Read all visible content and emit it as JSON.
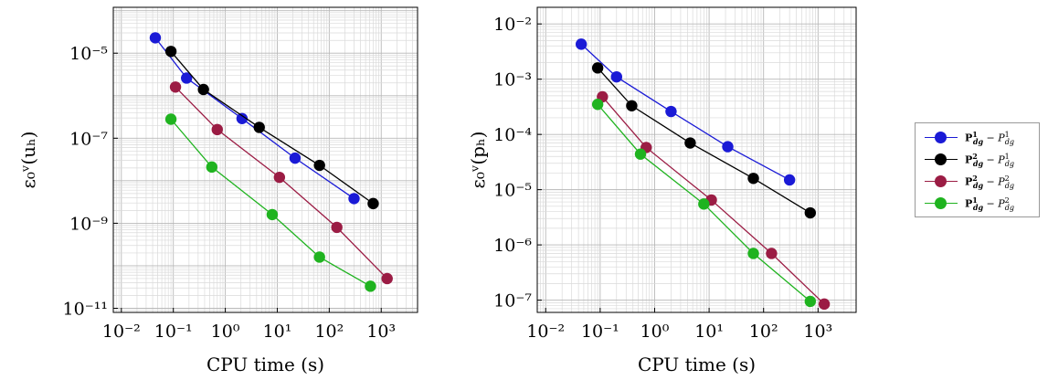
{
  "chart_data": [
    {
      "type": "line",
      "xscale": "log",
      "yscale": "log",
      "xlabel": "CPU time (s)",
      "ylabel": "ε₀ᵛ(uₕ)",
      "xlim": [
        0.007,
        5000
      ],
      "ylim": [
        8e-12,
        0.00012
      ],
      "xticks": [
        {
          "value": 0.01,
          "label": "10⁻²"
        },
        {
          "value": 0.1,
          "label": "10⁻¹"
        },
        {
          "value": 1,
          "label": "10⁰"
        },
        {
          "value": 10,
          "label": "10¹"
        },
        {
          "value": 100,
          "label": "10²"
        },
        {
          "value": 1000,
          "label": "10³"
        }
      ],
      "yticks": [
        {
          "value": 1e-11,
          "label": "10⁻¹¹"
        },
        {
          "value": 1e-09,
          "label": "10⁻⁹"
        },
        {
          "value": 1e-07,
          "label": "10⁻⁷"
        },
        {
          "value": 1e-05,
          "label": "10⁻⁵"
        }
      ],
      "grid": true,
      "series": [
        {
          "name": "P¹dg − P¹dg",
          "color": "#1a1ad6",
          "x": [
            0.045,
            0.18,
            2.1,
            22,
            300
          ],
          "y": [
            2.3e-05,
            2.6e-06,
            2.9e-07,
            3.4e-08,
            3.8e-09
          ]
        },
        {
          "name": "P²dg − P¹dg",
          "color": "#000000",
          "x": [
            0.09,
            0.38,
            4.5,
            65,
            700
          ],
          "y": [
            1.1e-05,
            1.4e-06,
            1.8e-07,
            2.3e-08,
            2.9e-09
          ]
        },
        {
          "name": "P²dg − P²dg",
          "color": "#9b1c44",
          "x": [
            0.11,
            0.7,
            11,
            140,
            1300
          ],
          "y": [
            1.6e-06,
            1.6e-07,
            1.2e-08,
            8e-10,
            5e-11
          ]
        },
        {
          "name": "P¹dg − P²dg",
          "color": "#1fb31f",
          "x": [
            0.09,
            0.55,
            8,
            65,
            620
          ],
          "y": [
            2.8e-07,
            2.1e-08,
            1.6e-09,
            1.6e-10,
            3.3e-11
          ]
        }
      ]
    },
    {
      "type": "line",
      "xscale": "log",
      "yscale": "log",
      "xlabel": "CPU time (s)",
      "ylabel": "ε₀ᵛ(pₕ)",
      "xlim": [
        0.007,
        5000
      ],
      "ylim": [
        6e-08,
        0.02
      ],
      "xticks": [
        {
          "value": 0.01,
          "label": "10⁻²"
        },
        {
          "value": 0.1,
          "label": "10⁻¹"
        },
        {
          "value": 1,
          "label": "10⁰"
        },
        {
          "value": 10,
          "label": "10¹"
        },
        {
          "value": 100,
          "label": "10²"
        },
        {
          "value": 1000,
          "label": "10³"
        }
      ],
      "yticks": [
        {
          "value": 1e-07,
          "label": "10⁻⁷"
        },
        {
          "value": 1e-06,
          "label": "10⁻⁶"
        },
        {
          "value": 1e-05,
          "label": "10⁻⁵"
        },
        {
          "value": 0.0001,
          "label": "10⁻⁴"
        },
        {
          "value": 0.001,
          "label": "10⁻³"
        },
        {
          "value": 0.01,
          "label": "10⁻²"
        }
      ],
      "grid": true,
      "series": [
        {
          "name": "P¹dg − P¹dg",
          "color": "#1a1ad6",
          "x": [
            0.045,
            0.2,
            2,
            22,
            300
          ],
          "y": [
            0.0043,
            0.0011,
            0.00026,
            6e-05,
            1.5e-05
          ]
        },
        {
          "name": "P²dg − P¹dg",
          "color": "#000000",
          "x": [
            0.09,
            0.38,
            4.5,
            65,
            720
          ],
          "y": [
            0.0016,
            0.00033,
            7e-05,
            1.6e-05,
            3.8e-06
          ]
        },
        {
          "name": "P²dg − P²dg",
          "color": "#9b1c44",
          "x": [
            0.11,
            0.7,
            11,
            140,
            1300
          ],
          "y": [
            0.00048,
            5.8e-05,
            6.5e-06,
            7e-07,
            8.5e-08
          ]
        },
        {
          "name": "P¹dg − P²dg",
          "color": "#1fb31f",
          "x": [
            0.09,
            0.55,
            8,
            65,
            720
          ],
          "y": [
            0.00035,
            4.4e-05,
            5.5e-06,
            7e-07,
            9.5e-08
          ]
        }
      ]
    }
  ],
  "legend": {
    "placement": "right",
    "items": [
      {
        "bold": "P",
        "sup1": "1",
        "sub1": "dg",
        "sep": " − ",
        "ital": "P",
        "sup2": "1",
        "sub2": "dg",
        "color": "#1a1ad6"
      },
      {
        "bold": "P",
        "sup1": "2",
        "sub1": "dg",
        "sep": " − ",
        "ital": "P",
        "sup2": "1",
        "sub2": "dg",
        "color": "#000000"
      },
      {
        "bold": "P",
        "sup1": "2",
        "sub1": "dg",
        "sep": " − ",
        "ital": "P",
        "sup2": "2",
        "sub2": "dg",
        "color": "#9b1c44"
      },
      {
        "bold": "P",
        "sup1": "1",
        "sub1": "dg",
        "sep": " − ",
        "ital": "P",
        "sup2": "2",
        "sub2": "dg",
        "color": "#1fb31f"
      }
    ]
  }
}
